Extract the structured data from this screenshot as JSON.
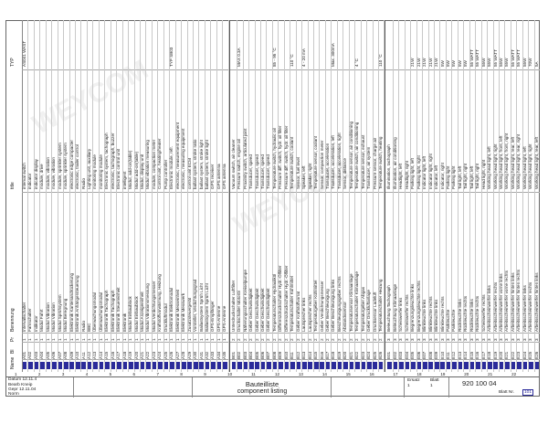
{
  "document": {
    "col_headers": {
      "name": "Name",
      "bl": "Bl",
      "pr": "Pr",
      "benennung": "Benennung",
      "title": "title",
      "typ": "TYP"
    },
    "rows": [
      {
        "a": "A01",
        "n": "1",
        "d": "Intervallschalter",
        "t": "interval switch",
        "ty": "AS041 WAST"
      },
      {
        "a": "A02",
        "n": "1",
        "d": "Fahrschalter",
        "t": "indicator",
        "ty": ""
      },
      {
        "a": "A03",
        "n": "1",
        "d": "Indikator",
        "t": "indicator display",
        "ty": ""
      },
      {
        "a": "A04",
        "n": "1",
        "d": "Modul Fahrt",
        "t": "module, drive",
        "ty": ""
      },
      {
        "a": "A05",
        "n": "1",
        "d": "Modul Vibration",
        "t": "module, vibration",
        "ty": ""
      },
      {
        "a": "A06",
        "n": "1",
        "d": "Modul Vibration",
        "t": "module, vibration",
        "ty": ""
      },
      {
        "a": "A07",
        "n": "1",
        "d": "Modul Sprühsystem",
        "t": "module, sprinkler system",
        "ty": ""
      },
      {
        "a": "A08",
        "n": "1",
        "d": "Modul Beregnung",
        "t": "module, sprinkler system",
        "ty": ""
      },
      {
        "a": "A09",
        "n": "1",
        "d": "Elektronik Kantenandrückerung",
        "t": "electronic edge compacter",
        "ty": ""
      },
      {
        "a": "A10",
        "n": "1",
        "d": "Elektronik Anhängersteuerung",
        "t": "electronic, trailer control",
        "ty": ""
      },
      {
        "a": "A11",
        "n": "1",
        "d": "Radio",
        "t": "Radio",
        "ty": ""
      },
      {
        "a": "A12",
        "n": "1",
        "d": "BBC",
        "t": "Lighting unit, auxiliary",
        "ty": ""
      },
      {
        "a": "A13",
        "n": "1",
        "d": "Überwachungsmodul",
        "t": "monitoring module",
        "ty": ""
      },
      {
        "a": "A14",
        "n": "1",
        "d": "Überwachungsmodul",
        "t": "monitoring module",
        "ty": ""
      },
      {
        "a": "A15",
        "n": "1",
        "d": "Elektronik Tachograph",
        "t": "Electronic system, tachograph",
        "ty": ""
      },
      {
        "a": "A16",
        "n": "1",
        "d": "Elektronik Tachograph",
        "t": "electronic, tachograph, buzzer",
        "ty": ""
      },
      {
        "a": "A17",
        "n": "1",
        "d": "Elektronik Steuereinheit",
        "t": "Electronic control unit",
        "ty": ""
      },
      {
        "a": "A18",
        "n": "1",
        "d": "Elektronik",
        "t": "intelligent",
        "ty": ""
      },
      {
        "a": "A19",
        "n": "1",
        "d": "Modul Einbaublock",
        "t": "Modul, add-on(table)",
        "ty": ""
      },
      {
        "a": "A20",
        "n": "1",
        "d": "Modul Einbaublock",
        "t": "Modul add-on(table)",
        "ty": ""
      },
      {
        "a": "A21",
        "n": "1",
        "d": "Modul Anzeigeeinheit",
        "t": "Modul, display unit",
        "ty": ""
      },
      {
        "a": "A22",
        "n": "1",
        "d": "Modul Vibrationsmessung",
        "t": "Modul vibration measuring",
        "ty": ""
      },
      {
        "a": "A23",
        "n": "1",
        "d": "Modul Verdichtungsmesser",
        "t": "module, compaction meter",
        "ty": ""
      },
      {
        "a": "A24",
        "n": "1",
        "d": "Kraftstoffvorwärmung, Heizung",
        "t": "Control unit, heating/heater",
        "ty": ""
      },
      {
        "a": "A25",
        "n": "1",
        "d": "Druckluftmodul",
        "t": "Pump controller",
        "ty": ""
      },
      {
        "a": "A26",
        "n": "1",
        "d": "Elektronik Elektromodul",
        "t": "Electronic module, refr.",
        "ty": "TYP SB03"
      },
      {
        "a": "A27",
        "n": "1",
        "d": "Elektronik Messeinheit",
        "t": "electronic, measurement equipment",
        "ty": ""
      },
      {
        "a": "A28",
        "n": "1",
        "d": "Elektronik Messwerk",
        "t": "electronic, measuring equipment",
        "ty": ""
      },
      {
        "a": "A29",
        "n": "1",
        "d": "Zusatzsteuergerät",
        "t": "control unit ECM",
        "ty": ""
      },
      {
        "a": "A30",
        "n": "1",
        "d": "Vorsteller, Verdichtungsgrad",
        "t": "ballast system, stroke ratio",
        "ty": ""
      },
      {
        "a": "A31",
        "n": "1",
        "d": "Ballastsystem Sprüh Licht",
        "t": "ballast system, stroke light",
        "ty": ""
      },
      {
        "a": "A32",
        "n": "1",
        "d": "Ballastsystem Sprüh Licht",
        "t": "ballast system, stroke light",
        "ty": ""
      },
      {
        "a": "A33",
        "n": "1",
        "d": "GPS-Empfänger",
        "t": "GPS receiver",
        "ty": ""
      },
      {
        "a": "A34",
        "n": "1",
        "d": "GPS-Antenne",
        "t": "GPS antenna",
        "ty": ""
      },
      {
        "a": "A35",
        "n": "1",
        "d": "GPS-Antenne",
        "t": "GPS antenna",
        "ty": ""
      }
    ],
    "rows2": [
      {
        "a": "B01",
        "n": "2",
        "d": "Unterdruckschalter Luftfilter",
        "t": "Vacuum switch, air cleaner",
        "ty": ""
      },
      {
        "a": "B02",
        "n": "2",
        "d": "Druckschalter Motoröl",
        "t": "Pressure switch, engine oil",
        "ty": "MAX 0.3A"
      },
      {
        "a": "B03",
        "n": "2",
        "d": "Näherungsschalter Kreiselpumpe",
        "t": "Proximity switch, articulated joint",
        "ty": ""
      },
      {
        "a": "B04",
        "n": "2",
        "d": "Geber Geschwindigkeit",
        "t": "Transducer, speed",
        "ty": ""
      },
      {
        "a": "B05",
        "n": "2",
        "d": "Geber Geschwindigkeit",
        "t": "Transducer, speed",
        "ty": ""
      },
      {
        "a": "B06",
        "n": "2",
        "d": "Geber Geschwindigkeit",
        "t": "Transducer, speed",
        "ty": ""
      },
      {
        "a": "B07",
        "n": "2",
        "d": "Geber Geschwindigkeit",
        "t": "Transducer, speed",
        "ty": ""
      },
      {
        "a": "B08",
        "n": "2",
        "d": "Temperaturschalter Hydrauliköl",
        "t": "Temperature switch, hydraulic oil",
        "ty": "85 - 95 °C"
      },
      {
        "a": "B09",
        "n": "2",
        "d": "Differenzdruckschalter Hydr.-Ölfilter",
        "t": "Pressure diff. switch, hydr. oil filter",
        "ty": ""
      },
      {
        "a": "B10",
        "n": "2",
        "d": "Differenzdruckschalter Hydr.-Ölfilter",
        "t": "Pressure diff. switch, hydr. oil filter",
        "ty": ""
      },
      {
        "a": "B11",
        "n": "2",
        "d": "Temperaturschalter Kühlmittel",
        "t": "Temperature switch, coolant",
        "ty": "110 °C"
      },
      {
        "a": "B12",
        "n": "2",
        "d": "Geber Kraftstoffvorrat",
        "t": "Sensor, fuel level",
        "ty": ""
      },
      {
        "a": "B13",
        "n": "2",
        "d": "Lautsprecher links",
        "t": "Speaker, left",
        "ty": "4 - 20 mA"
      },
      {
        "a": "B14",
        "n": "2",
        "d": "Lautsprecher rechts",
        "t": "Speaker, right",
        "ty": ""
      },
      {
        "a": "B15",
        "n": "2",
        "d": "Temperaturgeber Kühlmittel",
        "t": "Temperature sensor, coolant",
        "ty": ""
      },
      {
        "a": "B16",
        "n": "2",
        "d": "Geber Verdichtungsmesser",
        "t": "Sensor, compaction meter",
        "ty": ""
      },
      {
        "a": "B17",
        "n": "2",
        "d": "Geber Beschleunigung",
        "t": "Transducer, acceleration",
        "ty": ""
      },
      {
        "a": "B18",
        "n": "2",
        "d": "Geber Beschleunigung links",
        "t": "Transducer, acceleration, left",
        "ty": "Max. 300mA"
      },
      {
        "a": "B19",
        "n": "2",
        "d": "Beschleunigungsgeber rechts",
        "t": "Transducer, acceleration, right",
        "ty": ""
      },
      {
        "a": "B20",
        "n": "2",
        "d": "Abstandssensor",
        "t": "Sensor, distance",
        "ty": ""
      },
      {
        "a": "B21",
        "n": "2",
        "d": "Temperatursensor Klimaanlage",
        "t": "Temperature sensor, air conditioning",
        "ty": ""
      },
      {
        "a": "B22",
        "n": "2",
        "d": "Temperaturschalter Klimaanlage",
        "t": "Temperature switch, air conditioning",
        "ty": "4 °C"
      },
      {
        "a": "B23",
        "n": "2",
        "d": "Temperaturgeber Abgas",
        "t": "Temperature sensor, exhaust",
        "ty": ""
      },
      {
        "a": "B24",
        "n": "2",
        "d": "Geber Druckluftanlage",
        "t": "Transducer, air system",
        "ty": ""
      },
      {
        "a": "B25",
        "n": "2",
        "d": "Drucksensor Ladeluft",
        "t": "Pressure sensor, charge air",
        "ty": ""
      },
      {
        "a": "B26",
        "n": "2",
        "d": "Temperaturschalter Heizung",
        "t": "Temperature switch, heating",
        "ty": "110 °C"
      }
    ],
    "rows3": [
      {
        "a": "E01",
        "n": "3",
        "d": "Beleuchtung Tachograph",
        "t": "Illumination, tachograph",
        "ty": ""
      },
      {
        "a": "E02",
        "n": "3",
        "d": "Beleuchtung Klimaanlage",
        "t": "Illumination, air conditioning",
        "ty": ""
      },
      {
        "a": "E03",
        "n": "3",
        "d": "Scheinwerfer links",
        "t": "Headlight, left",
        "ty": ""
      },
      {
        "a": "E04",
        "n": "3",
        "d": "Scheinwerfer rechts",
        "t": "Headlight, right",
        "ty": ""
      },
      {
        "a": "E05",
        "n": "3",
        "d": "Begrenzungsleuchte links",
        "t": "Parking light, left",
        "ty": "21W"
      },
      {
        "a": "E06",
        "n": "3",
        "d": "Begrenzungsleuchte rechts",
        "t": "Parking light, right",
        "ty": "21W"
      },
      {
        "a": "E07",
        "n": "3",
        "d": "Blinkleuchte links",
        "t": "Indicator light, left",
        "ty": "21W"
      },
      {
        "a": "E08",
        "n": "3",
        "d": "Blinkleuchte rechts",
        "t": "Indicator light, right",
        "ty": "21W"
      },
      {
        "a": "E09",
        "n": "3",
        "d": "Blinkleuchte links",
        "t": "Indicator, left",
        "ty": "21W"
      },
      {
        "a": "E10",
        "n": "3",
        "d": "Blinkleuchte rechts",
        "t": "Indicator, right",
        "ty": "5W"
      },
      {
        "a": "E11",
        "n": "3",
        "d": "Parkleuchte",
        "t": "Parking light",
        "ty": "5W"
      },
      {
        "a": "E12",
        "n": "3",
        "d": "Parkleuchte",
        "t": "Parking light",
        "ty": "5W"
      },
      {
        "a": "E13",
        "n": "3",
        "d": "Rückleuchte links",
        "t": "Tail light, left",
        "ty": "5W"
      },
      {
        "a": "E14",
        "n": "3",
        "d": "Rückleuchte rechts",
        "t": "Tail light, right",
        "ty": "5W"
      },
      {
        "a": "E15",
        "n": "3",
        "d": "Rückleuchte links",
        "t": "Tail light, left",
        "ty": "55 WATT"
      },
      {
        "a": "E16",
        "n": "3",
        "d": "Rückleuchte rechts",
        "t": "Tail light, right",
        "ty": "55 WATT"
      },
      {
        "a": "E17",
        "n": "3",
        "d": "Scheinwerfer rechts",
        "t": "Head light, right",
        "ty": "55W"
      },
      {
        "a": "E18",
        "n": "3",
        "d": "Arbeitsscheinwerfer links",
        "t": "Working head light, left",
        "ty": "55W"
      },
      {
        "a": "E19",
        "n": "3",
        "d": "Arbeitsscheinwerfer rechts",
        "t": "Working head light, right",
        "ty": "55 WATT"
      },
      {
        "a": "E20",
        "n": "3",
        "d": "Arbeitsscheinwerfer vorne links",
        "t": "Working head light, front, left",
        "ty": "55W"
      },
      {
        "a": "E21",
        "n": "3",
        "d": "Arbeitsscheinwerfer vorne rechts",
        "t": "Working head light, front, right",
        "ty": "55W"
      },
      {
        "a": "E22",
        "n": "3",
        "d": "Arbeitsscheinwerfer hinten links",
        "t": "Working head light, rear, left",
        "ty": "55 WATT"
      },
      {
        "a": "E23",
        "n": "3",
        "d": "Arbeitsscheinwerfer hinten rechts",
        "t": "Working head light, rear, right",
        "ty": "55 WATT"
      },
      {
        "a": "E24",
        "n": "3",
        "d": "Arbeitsscheinwerfer links",
        "t": "Working head light, left",
        "ty": "55W"
      },
      {
        "a": "E25",
        "n": "3",
        "d": "Arbeitsscheinwerfer rechts",
        "t": "Working head light, right",
        "ty": "70W"
      },
      {
        "a": "E26",
        "n": "3",
        "d": "Arbeitsscheinwerfer hinten links",
        "t": "Working head light, rear, left",
        "ty": "5A"
      },
      {
        "a": "E27",
        "n": "3",
        "d": "Arbeitsscheinwerfer hinten rechts",
        "t": "Working head light, rear, right",
        "ty": "5A"
      },
      {
        "a": "E28",
        "n": "3",
        "d": "Arbeitsscheinwerfer hinten rechts",
        "t": "Working head light, rear, right",
        "ty": "5A"
      }
    ],
    "ticks": [
      "1",
      "2",
      "3",
      "4",
      "5",
      "6",
      "7",
      "8",
      "9",
      "10",
      "11",
      "12",
      "13",
      "14",
      "15",
      "16",
      "17",
      "18",
      "19",
      "20",
      "21",
      "22"
    ],
    "titleblock": {
      "datum_label": "Datum",
      "datum_value": "12.11.4",
      "bearb_label": "Bearb",
      "bearb_value": "Kneip",
      "gepr_label": "Gepr",
      "gepr_value": "12.11.04",
      "norm_label": "Norm",
      "title_de": "Bauteilliste",
      "title_en": "component listing",
      "ers_label": "Ersatz",
      "ers_value": "1",
      "blatt_label": "Blatt",
      "blatt_value": "1",
      "drawing_no": "920 100 04",
      "page_label": "Blatt Nr.",
      "page_value": "101"
    }
  }
}
